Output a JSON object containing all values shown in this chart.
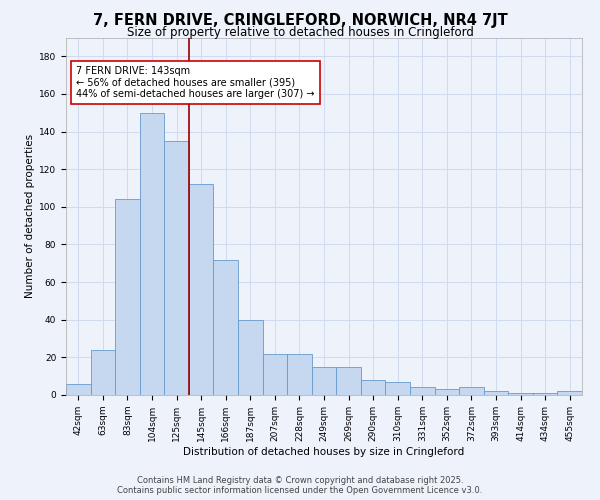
{
  "title_line1": "7, FERN DRIVE, CRINGLEFORD, NORWICH, NR4 7JT",
  "title_line2": "Size of property relative to detached houses in Cringleford",
  "xlabel": "Distribution of detached houses by size in Cringleford",
  "ylabel": "Number of detached properties",
  "categories": [
    "42sqm",
    "63sqm",
    "83sqm",
    "104sqm",
    "125sqm",
    "145sqm",
    "166sqm",
    "187sqm",
    "207sqm",
    "228sqm",
    "249sqm",
    "269sqm",
    "290sqm",
    "310sqm",
    "331sqm",
    "352sqm",
    "372sqm",
    "393sqm",
    "414sqm",
    "434sqm",
    "455sqm"
  ],
  "values": [
    6,
    24,
    104,
    150,
    135,
    112,
    72,
    40,
    22,
    22,
    15,
    15,
    8,
    7,
    4,
    3,
    4,
    2,
    1,
    1,
    2
  ],
  "bar_color": "#c5d8f0",
  "bar_edge_color": "#6699cc",
  "vline_color": "#990000",
  "annotation_text": "7 FERN DRIVE: 143sqm\n← 56% of detached houses are smaller (395)\n44% of semi-detached houses are larger (307) →",
  "annotation_box_color": "#ffffff",
  "annotation_box_edge_color": "#cc0000",
  "ylim": [
    0,
    190
  ],
  "yticks": [
    0,
    20,
    40,
    60,
    80,
    100,
    120,
    140,
    160,
    180
  ],
  "bg_color": "#edf2fb",
  "grid_color": "#d0daf0",
  "footer_line1": "Contains HM Land Registry data © Crown copyright and database right 2025.",
  "footer_line2": "Contains public sector information licensed under the Open Government Licence v3.0.",
  "title_fontsize": 10.5,
  "subtitle_fontsize": 8.5,
  "axis_label_fontsize": 7.5,
  "tick_fontsize": 6.5,
  "annotation_fontsize": 7,
  "footer_fontsize": 6
}
